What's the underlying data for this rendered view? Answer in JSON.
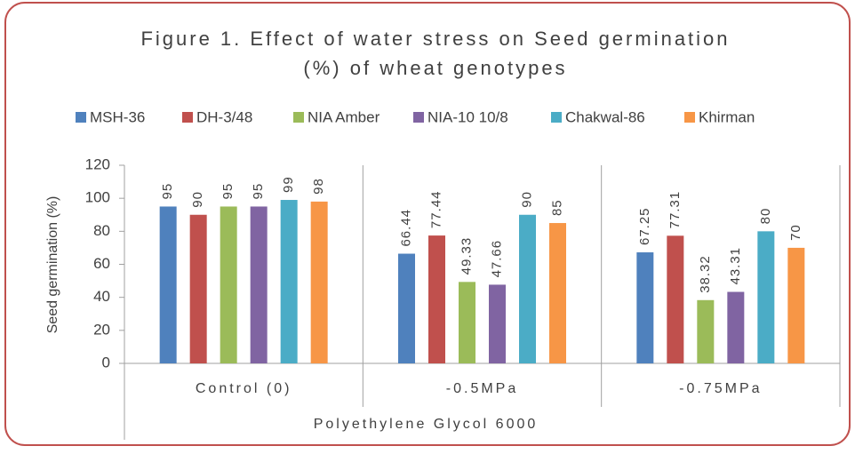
{
  "chart_data": {
    "type": "bar",
    "title": [
      "Figure 1. Effect of water stress on Seed germination",
      "(%) of wheat genotypes"
    ],
    "x_label": "Polyethylene  Glycol 6000",
    "y_label": "Seed germination  (%)",
    "categories": [
      "Control (0)",
      "-0.5MPa",
      "-0.75MPa"
    ],
    "series": [
      {
        "name": "MSH-36",
        "color": "#4f81bd",
        "values": [
          95,
          66.44,
          67.25
        ]
      },
      {
        "name": "DH-3/48",
        "color": "#c0504d",
        "values": [
          90,
          77.44,
          77.31
        ]
      },
      {
        "name": "NIA Amber",
        "color": "#9bbb59",
        "values": [
          95,
          49.33,
          38.32
        ]
      },
      {
        "name": "NIA-10 10/8",
        "color": "#8064a2",
        "values": [
          95,
          47.66,
          43.31
        ]
      },
      {
        "name": "Chakwal-86",
        "color": "#4bacc6",
        "values": [
          99,
          90,
          80
        ]
      },
      {
        "name": "Khirman",
        "color": "#f79646",
        "values": [
          98,
          85,
          70
        ]
      }
    ],
    "ylim": [
      0,
      120
    ],
    "yticks": [
      0,
      20,
      40,
      60,
      80,
      100,
      120
    ],
    "grid": false,
    "legend": "top",
    "data_labels": true
  }
}
